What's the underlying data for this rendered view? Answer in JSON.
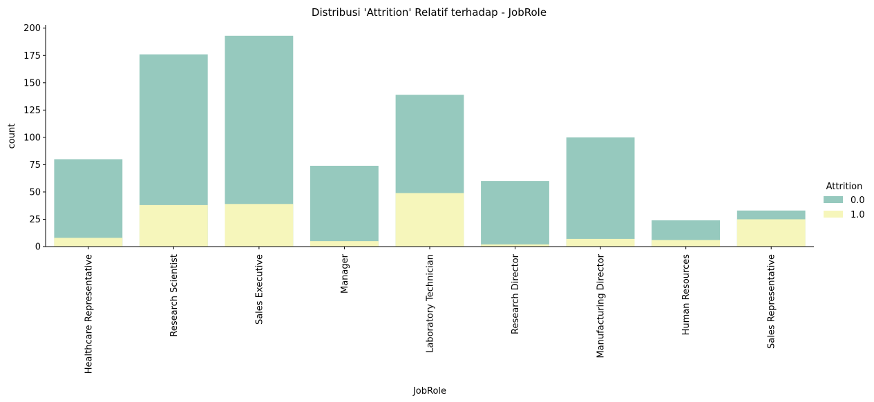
{
  "chart_data": {
    "type": "bar",
    "title": "Distribusi 'Attrition' Relatif terhadap - JobRole",
    "xlabel": "JobRole",
    "ylabel": "count",
    "ylim": [
      0,
      200
    ],
    "yticks": [
      0,
      25,
      50,
      75,
      100,
      125,
      150,
      175,
      200
    ],
    "categories": [
      "Healthcare Representative",
      "Research Scientist",
      "Sales Executive",
      "Manager",
      "Laboratory Technician",
      "Research Director",
      "Manufacturing Director",
      "Human Resources",
      "Sales Representative"
    ],
    "grid": false,
    "legend": {
      "title": "Attrition",
      "position": "right"
    },
    "series": [
      {
        "name": "0.0",
        "color": "#96c9be",
        "values": [
          80,
          176,
          193,
          74,
          139,
          60,
          100,
          24,
          33
        ]
      },
      {
        "name": "1.0",
        "color": "#f6f6bb",
        "values": [
          8,
          38,
          39,
          5,
          49,
          2,
          7,
          6,
          25
        ]
      }
    ]
  }
}
